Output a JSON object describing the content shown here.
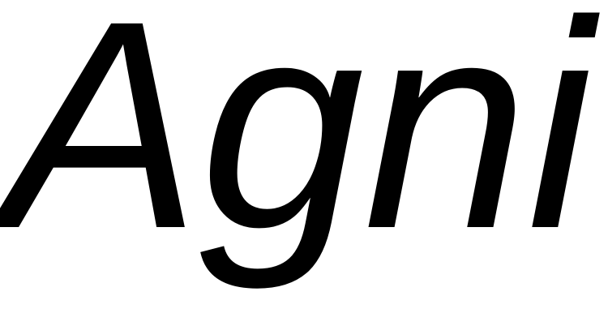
{
  "text": {
    "word": "Agni"
  },
  "colors": {
    "background": "#ffffff",
    "text": "#000000"
  }
}
